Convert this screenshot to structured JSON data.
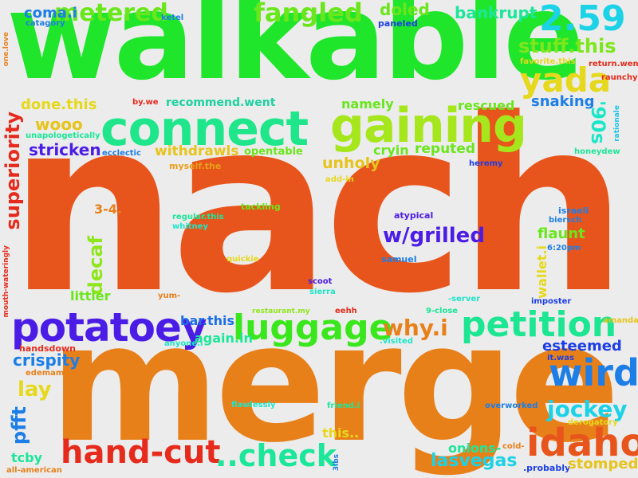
{
  "words": {
    "walkable": "walkable",
    "nach": "nach",
    "merge": "merge",
    "connect": "connect",
    "gaining": "gaining",
    "potatoey": "potatoey",
    "luggage": "luggage",
    "petition": "petition",
    "hand_cut": "hand-cut",
    "check": "..check",
    "idaho": "idaho",
    "wird": "wird",
    "yada": "yada",
    "metered": "metered",
    "fangled": "fangled",
    "doled": "doled",
    "bankrupt": "bankrupt",
    "n259": "2.59",
    "stuff_this": "stuff.this",
    "coma_i": "coma.i",
    "catagory": "catagory",
    "ketel": "ketel",
    "paneled": "paneled",
    "one_love": "one.love",
    "favorite_this": "favorite.this",
    "return_went": "return.went",
    "raunchy": "raunchy",
    "done_this": "done.this",
    "by_we": "by.we",
    "recommend_went": "recommend.went",
    "namely": "namely",
    "rescued": "rescued",
    "snaking": "snaking",
    "n90s": "'90s",
    "rationale": "rationale",
    "superiority": "superiority",
    "wooo": "wooo",
    "unapologetically": "unapologetically",
    "stricken": "stricken",
    "ecclectic": "ecclectic",
    "withdrawls": "withdrawls",
    "opentable": "opentable",
    "cryin": "cryin",
    "reputed": "reputed",
    "heremy": "heremy",
    "honeydew": "honeydew",
    "myself_the": "myself.the",
    "unholy": "unholy",
    "add_in": "add-in",
    "n34": "3-4.",
    "tackling": "tackling",
    "regular_this": "regular.this",
    "whitney": "whitney",
    "atypical": "atypical",
    "israeli": "israeli",
    "biersch": "biersch",
    "w_grilled": "w/grilled",
    "flaunt": "flaunt",
    "decaf": "decaf",
    "quickie": "quickie",
    "samuel": "samuel",
    "n620pm": "6:20pm",
    "wallet_i": "wallet.i",
    "mouth_wateringly": "mouth-wateringly",
    "littler": "littler",
    "scoot": "scoot",
    "sierra": "sierra",
    "yum": "yum-",
    "server": "-server",
    "imposter": "imposter",
    "restaurant_my": "restaurant.my",
    "eehh": "eehh",
    "n9close": "9-close",
    "amanda": "amanda",
    "bar_this": "bar.this",
    "why_i": "why.i",
    "handsdown": "handsdown",
    "anyone_i": "anyone.i",
    "visited": ".visited",
    "again_in": "again.in",
    "esteemed": "esteemed",
    "crispity": "crispity",
    "it_was": "it.was",
    "edemame": "edemame",
    "lay": "lay",
    "pfft": "pfft",
    "flawlessly": "flawlessly",
    "friend_i": "friend.i",
    "overworked": "overworked",
    "jockey": "jockey",
    "derogatory": "derogatory",
    "this": "this..",
    "onions": "onions-",
    "cold": "cold-",
    "tcby": "tcby",
    "all_american": "all-american",
    "lbs3": "3lbs",
    "lasvegas": "lasvegas",
    "probably": ".probably",
    "stomped": "stomped"
  },
  "colors": {
    "background": "#ececec",
    "green": "#1fe62b",
    "orange_red": "#e8551c",
    "orange": "#e8801a",
    "lime": "#8ee61c",
    "yellow": "#e6d81c",
    "purple": "#5a1ce6",
    "blue": "#1c7ee6",
    "cyan": "#1cd2e6",
    "teal": "#1ce69a",
    "red": "#e62a1c"
  }
}
